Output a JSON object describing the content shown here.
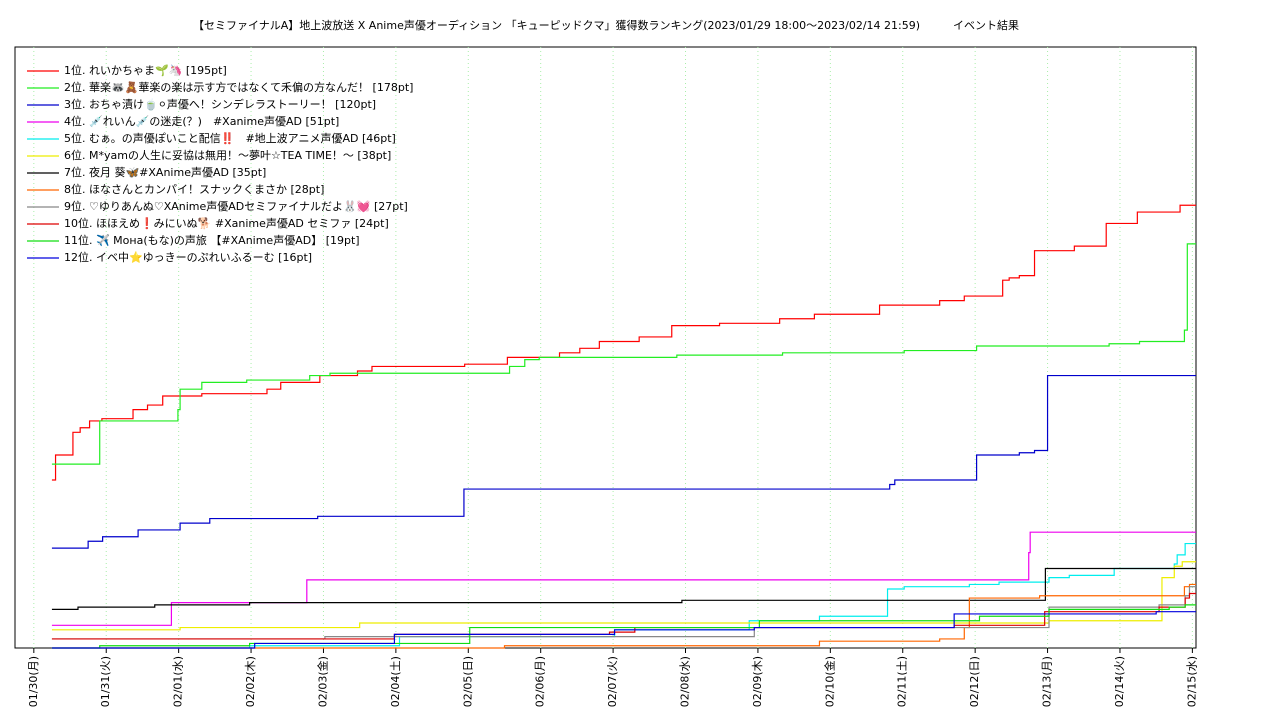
{
  "chart_data": {
    "type": "step",
    "title": "【セミファイナルA】地上波放送 X Anime声優オーディション 「キューピッドクマ」獲得数ランキング(2023/01/29 18:00～2023/02/14 21:59)　　　イベント結果",
    "xlim": [
      -0.26,
      16.05
    ],
    "ylim": [
      0,
      264.7
    ],
    "grid": true,
    "legend": "upper left",
    "xticks": [
      {
        "value": 0,
        "label": "01/30(月)"
      },
      {
        "value": 1,
        "label": "01/31(火)"
      },
      {
        "value": 2,
        "label": "02/01(水)"
      },
      {
        "value": 3,
        "label": "02/02(木)"
      },
      {
        "value": 4,
        "label": "02/03(金)"
      },
      {
        "value": 5,
        "label": "02/04(土)"
      },
      {
        "value": 6,
        "label": "02/05(日)"
      },
      {
        "value": 7,
        "label": "02/06(月)"
      },
      {
        "value": 8,
        "label": "02/07(火)"
      },
      {
        "value": 9,
        "label": "02/08(水)"
      },
      {
        "value": 10,
        "label": "02/09(木)"
      },
      {
        "value": 11,
        "label": "02/10(金)"
      },
      {
        "value": 12,
        "label": "02/11(土)"
      },
      {
        "value": 13,
        "label": "02/12(日)"
      },
      {
        "value": 14,
        "label": "02/13(月)"
      },
      {
        "value": 15,
        "label": "02/14(火)"
      },
      {
        "value": 16,
        "label": "02/15(水)"
      }
    ],
    "series": [
      {
        "name": "1位. れいかちゃま🌱🦄 [195pt]",
        "color": "#ff0000",
        "x": [
          0.25,
          0.3,
          0.54,
          0.64,
          0.77,
          0.94,
          1.37,
          1.57,
          1.78,
          2.32,
          3.22,
          3.41,
          3.95,
          4.47,
          4.67,
          5.95,
          6.54,
          7.26,
          7.54,
          7.81,
          8.36,
          8.81,
          9.47,
          10.3,
          10.78,
          11.68,
          12.51,
          12.85,
          13.38,
          13.47,
          13.61,
          13.82,
          14.37,
          14.81,
          15.24,
          15.83
        ],
        "values": [
          74,
          85,
          95,
          97,
          100,
          101,
          105,
          107,
          111,
          112,
          114,
          117,
          120,
          122,
          124,
          125,
          128,
          130,
          132,
          135,
          137,
          142,
          143,
          145,
          147,
          151,
          153,
          155,
          162,
          163,
          164,
          175,
          177,
          187,
          192,
          195
        ]
      },
      {
        "name": "2位. 華楽🦝🧸華楽の楽は示す方ではなくて禾偏の方なんだ！ [178pt]",
        "color": "#22ee22",
        "x": [
          0.25,
          0.91,
          1.99,
          2.02,
          2.32,
          2.94,
          3.81,
          4.09,
          6.57,
          6.78,
          6.98,
          8.88,
          10.34,
          12.02,
          13.02,
          14.85,
          15.27,
          15.89,
          15.93
        ],
        "values": [
          81,
          100,
          105,
          114,
          117,
          118,
          120,
          121,
          124,
          127,
          128,
          129,
          130,
          131,
          133,
          134,
          135,
          140,
          178
        ]
      },
      {
        "name": "3位. おちゃ漬け🍵⚪声優へ！シンデレラストーリー！ [120pt]",
        "color": "#0000cc",
        "x": [
          0.25,
          0.75,
          0.95,
          1.44,
          2.02,
          2.43,
          3.92,
          5.94,
          11.82,
          11.89,
          13.02,
          13.61,
          13.82,
          14.0
        ],
        "values": [
          44,
          47,
          49,
          52,
          55,
          57,
          58,
          70,
          72,
          74,
          85,
          86,
          87,
          120
        ]
      },
      {
        "name": "4位. 💉れいん💉の迷走(？)　#Xanime声優AD [51pt]",
        "color": "#ee00ee",
        "x": [
          0.25,
          1.9,
          3.77,
          13.74,
          13.76
        ],
        "values": [
          10,
          20,
          30,
          42,
          51
        ]
      },
      {
        "name": "5位. むぁ。の声優ぽいこと配信‼️　#地上波アニメ声優AD [46pt]",
        "color": "#00eeee",
        "x": [
          0.25,
          2.98,
          5.05,
          8.02,
          9.88,
          10.85,
          11.79,
          12.02,
          12.92,
          13.33,
          14.02,
          14.3,
          14.92,
          15.75,
          15.79,
          15.9
        ],
        "values": [
          0,
          1,
          5,
          8,
          12,
          14,
          26,
          27,
          28,
          29,
          31,
          32,
          35,
          37,
          41,
          46
        ]
      },
      {
        "name": "6位. M*yamの人生に妥協は無用！〜夢叶☆TEA TIME！〜 [38pt]",
        "color": "#eeee00",
        "x": [
          0.25,
          2.02,
          4.5,
          14.02,
          15.58,
          15.75,
          15.86
        ],
        "values": [
          8,
          9,
          11,
          12,
          31,
          36,
          38
        ]
      },
      {
        "name": "7位. 夜月 葵🦋#XAnime声優AD [35pt]",
        "color": "#000000",
        "x": [
          0.25,
          0.61,
          1.67,
          2.98,
          8.95,
          13.97
        ],
        "values": [
          17,
          18,
          19,
          20,
          21,
          35
        ]
      },
      {
        "name": "8位. ほなさんとカンパイ！スナックくまさか [28pt]",
        "color": "#ff6600",
        "x": [
          0.25,
          6.5,
          10.85,
          12.51,
          12.85,
          12.92,
          13.89,
          15.89,
          15.96
        ],
        "values": [
          0,
          1,
          3,
          4,
          9,
          22,
          23,
          27,
          28
        ]
      },
      {
        "name": "9位. ♡ゆりあんぬ♡XAnime声優ADセミファイナルだよ🐰💓 [27pt]",
        "color": "#888888",
        "x": [
          0.25,
          4.02,
          9.95,
          14.02,
          15.54,
          15.9,
          15.96
        ],
        "values": [
          4,
          5,
          9,
          18,
          19,
          23,
          27
        ]
      },
      {
        "name": "10位. ほほえめ❗みにいぬ🐕 #Xanime声優AD セミファ [24pt]",
        "color": "#dd0000",
        "x": [
          0.25,
          4.98,
          7.95,
          8.3,
          12.71,
          13.96,
          15.54,
          15.9,
          15.96
        ],
        "values": [
          4,
          6,
          7,
          9,
          10,
          16,
          18,
          22,
          24
        ]
      },
      {
        "name": "11位. ✈️ Moна(もな)の声旅 【#XAnime声優AD】 [19pt]",
        "color": "#11dd11",
        "x": [
          0.25,
          0.91,
          2.98,
          6.02,
          10.02,
          13.06,
          14.02,
          15.68,
          15.9
        ],
        "values": [
          0,
          1,
          2,
          9,
          12,
          14,
          17,
          18,
          19
        ]
      },
      {
        "name": "12位. イベ中⭐ゆっきーのぷれいふるーむ [16pt]",
        "color": "#0000dd",
        "x": [
          0.25,
          3.05,
          4.98,
          8.02,
          9.95,
          12.71,
          15.5
        ],
        "values": [
          0,
          2,
          6,
          8,
          9,
          15,
          16
        ]
      }
    ]
  }
}
